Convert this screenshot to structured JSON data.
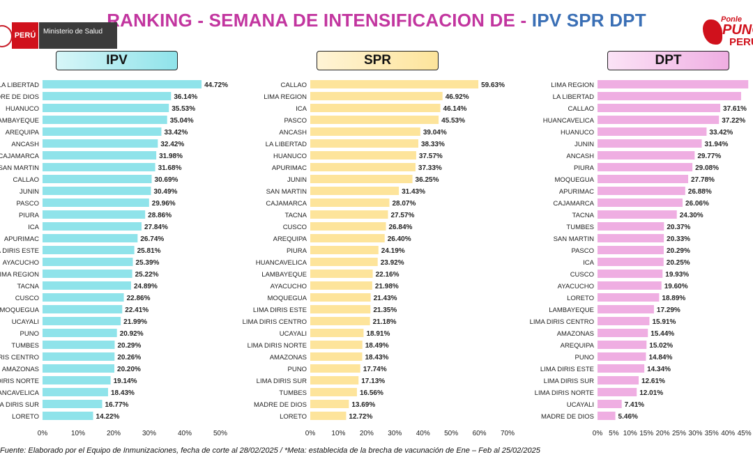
{
  "title": {
    "part1": "RANKING - SEMANA DE INTENSIFICACION DE - ",
    "part2": "IPV SPR DPT"
  },
  "logos": {
    "peru": "PERÚ",
    "ministry": "Ministerio de Salud",
    "campaign_top": "Ponle",
    "campaign_mid": "PUNCHE",
    "campaign_bottom": "PERÚ"
  },
  "footer": "Fuente: Elaborado por el Equipo de Inmunizaciones, fecha de corte al 28/02/2025 / *Meta: establecida de la brecha de vacunación de Ene – Feb al 25/02/2025",
  "colors": {
    "ipv": "#8fe3ea",
    "spr": "#fde49b",
    "dpt": "#efaee2",
    "title_pink": "#c2359f",
    "title_blue": "#3a6fb5"
  },
  "chart_data": [
    {
      "type": "bar",
      "orientation": "horizontal",
      "title": "IPV",
      "categories": [
        "LA LIBERTAD",
        "MADRE DE DIOS",
        "HUANUCO",
        "LAMBAYEQUE",
        "AREQUIPA",
        "ANCASH",
        "CAJAMARCA",
        "SAN MARTIN",
        "CALLAO",
        "JUNIN",
        "PASCO",
        "PIURA",
        "ICA",
        "APURIMAC",
        "LIMA DIRIS ESTE",
        "AYACUCHO",
        "LIMA REGION",
        "TACNA",
        "CUSCO",
        "MOQUEGUA",
        "UCAYALI",
        "PUNO",
        "TUMBES",
        "LIMA DIRIS CENTRO",
        "AMAZONAS",
        "LIMA DIRIS NORTE",
        "HUANCAVELICA",
        "LIMA DIRIS SUR",
        "LORETO"
      ],
      "values": [
        44.72,
        36.14,
        35.53,
        35.04,
        33.42,
        32.42,
        31.98,
        31.68,
        30.69,
        30.49,
        29.96,
        28.86,
        27.84,
        26.74,
        25.81,
        25.39,
        25.22,
        24.89,
        22.86,
        22.41,
        21.99,
        20.92,
        20.29,
        20.26,
        20.2,
        19.14,
        18.43,
        16.77,
        14.22
      ],
      "labels": [
        "44.72%",
        "36.14%",
        "35.53%",
        "35.04%",
        "33.42%",
        "32.42%",
        "31.98%",
        "31.68%",
        "30.69%",
        "30.49%",
        "29.96%",
        "28.86%",
        "27.84%",
        "26.74%",
        "25.81%",
        "25.39%",
        "25.22%",
        "24.89%",
        "22.86%",
        "22.41%",
        "21.99%",
        "20.92%",
        "20.29%",
        "20.26%",
        "20.20%",
        "19.14%",
        "18.43%",
        "16.77%",
        "14.22%"
      ],
      "xlim": [
        0,
        50
      ],
      "ticks": [
        "0%",
        "10%",
        "20%",
        "30%",
        "40%",
        "50%"
      ]
    },
    {
      "type": "bar",
      "orientation": "horizontal",
      "title": "SPR",
      "categories": [
        "CALLAO",
        "LIMA REGION",
        "ICA",
        "PASCO",
        "ANCASH",
        "LA LIBERTAD",
        "HUANUCO",
        "APURIMAC",
        "JUNIN",
        "SAN MARTIN",
        "CAJAMARCA",
        "TACNA",
        "CUSCO",
        "AREQUIPA",
        "PIURA",
        "HUANCAVELICA",
        "LAMBAYEQUE",
        "AYACUCHO",
        "MOQUEGUA",
        "LIMA DIRIS ESTE",
        "LIMA DIRIS CENTRO",
        "UCAYALI",
        "LIMA DIRIS NORTE",
        "AMAZONAS",
        "PUNO",
        "LIMA DIRIS SUR",
        "TUMBES",
        "MADRE DE DIOS",
        "LORETO"
      ],
      "values": [
        59.63,
        46.92,
        46.14,
        45.53,
        39.04,
        38.33,
        37.57,
        37.33,
        36.25,
        31.43,
        28.07,
        27.57,
        26.84,
        26.4,
        24.19,
        23.92,
        22.16,
        21.98,
        21.43,
        21.35,
        21.18,
        18.91,
        18.49,
        18.43,
        17.74,
        17.13,
        16.56,
        13.69,
        12.72
      ],
      "labels": [
        "59.63%",
        "46.92%",
        "46.14%",
        "45.53%",
        "39.04%",
        "38.33%",
        "37.57%",
        "37.33%",
        "36.25%",
        "31.43%",
        "28.07%",
        "27.57%",
        "26.84%",
        "26.40%",
        "24.19%",
        "23.92%",
        "22.16%",
        "21.98%",
        "21.43%",
        "21.35%",
        "21.18%",
        "18.91%",
        "18.49%",
        "18.43%",
        "17.74%",
        "17.13%",
        "16.56%",
        "13.69%",
        "12.72%"
      ],
      "xlim": [
        0,
        70
      ],
      "ticks": [
        "0%",
        "10%",
        "20%",
        "30%",
        "40%",
        "50%",
        "60%",
        "70%"
      ]
    },
    {
      "type": "bar",
      "orientation": "horizontal",
      "title": "DPT",
      "categories": [
        "LIMA REGION",
        "LA LIBERTAD",
        "CALLAO",
        "HUANCAVELICA",
        "HUANUCO",
        "JUNIN",
        "ANCASH",
        "PIURA",
        "MOQUEGUA",
        "APURIMAC",
        "CAJAMARCA",
        "TACNA",
        "TUMBES",
        "SAN MARTIN",
        "PASCO",
        "ICA",
        "CUSCO",
        "AYACUCHO",
        "LORETO",
        "LAMBAYEQUE",
        "LIMA DIRIS CENTRO",
        "AMAZONAS",
        "AREQUIPA",
        "PUNO",
        "LIMA DIRIS ESTE",
        "LIMA DIRIS SUR",
        "LIMA DIRIS NORTE",
        "UCAYALI",
        "MADRE DE DIOS"
      ],
      "values": [
        46.2,
        44.0,
        37.61,
        37.22,
        33.42,
        31.94,
        29.77,
        29.08,
        27.78,
        26.88,
        26.06,
        24.3,
        20.37,
        20.33,
        20.29,
        20.25,
        19.93,
        19.6,
        18.89,
        17.29,
        15.91,
        15.44,
        15.02,
        14.84,
        14.34,
        12.61,
        12.01,
        7.41,
        5.46
      ],
      "labels": [
        "",
        "",
        "37.61%",
        "37.22%",
        "33.42%",
        "31.94%",
        "29.77%",
        "29.08%",
        "27.78%",
        "26.88%",
        "26.06%",
        "24.30%",
        "20.37%",
        "20.33%",
        "20.29%",
        "20.25%",
        "19.93%",
        "19.60%",
        "18.89%",
        "17.29%",
        "15.91%",
        "15.44%",
        "15.02%",
        "14.84%",
        "14.34%",
        "12.61%",
        "12.01%",
        "7.41%",
        "5.46%"
      ],
      "xlim": [
        0,
        45
      ],
      "ticks": [
        "0%",
        "5%",
        "10%",
        "15%",
        "20%",
        "25%",
        "30%",
        "35%",
        "40%",
        "45%"
      ]
    }
  ]
}
